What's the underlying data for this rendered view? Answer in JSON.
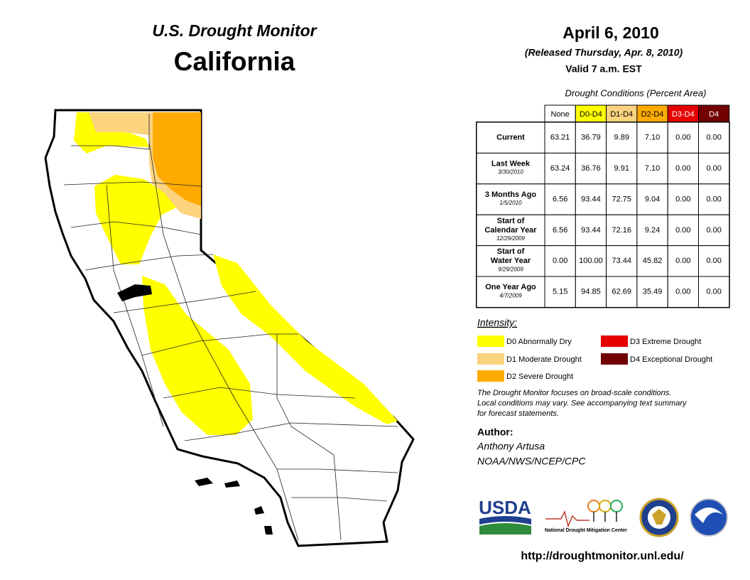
{
  "header": {
    "title": "U.S. Drought Monitor",
    "region": "California",
    "date": "April 6, 2010",
    "released": "(Released Thursday, Apr. 8, 2010)",
    "valid": "Valid 7 a.m. EST"
  },
  "table": {
    "caption": "Drought Conditions (Percent Area)",
    "columns": [
      {
        "label": "None",
        "color": "#ffffff",
        "text_color": "#000000"
      },
      {
        "label": "D0-D4",
        "color": "#ffff00",
        "text_color": "#000000"
      },
      {
        "label": "D1-D4",
        "color": "#fcd37f",
        "text_color": "#000000"
      },
      {
        "label": "D2-D4",
        "color": "#ffaa00",
        "text_color": "#000000"
      },
      {
        "label": "D3-D4",
        "color": "#e60000",
        "text_color": "#ffffff"
      },
      {
        "label": "D4",
        "color": "#730000",
        "text_color": "#ffffff"
      }
    ],
    "rows": [
      {
        "label": [
          "Current"
        ],
        "values": [
          "63.21",
          "36.79",
          "9.89",
          "7.10",
          "0.00",
          "0.00"
        ]
      },
      {
        "label": [
          "Last Week"
        ],
        "date": "3/30/2010",
        "values": [
          "63.24",
          "36.76",
          "9.91",
          "7.10",
          "0.00",
          "0.00"
        ]
      },
      {
        "label": [
          "3 Months Ago"
        ],
        "date": "1/5/2010",
        "values": [
          "6.56",
          "93.44",
          "72.75",
          "9.04",
          "0.00",
          "0.00"
        ]
      },
      {
        "label": [
          "Start of",
          "Calendar Year"
        ],
        "date": "12/29/2009",
        "values": [
          "6.56",
          "93.44",
          "72.16",
          "9.24",
          "0.00",
          "0.00"
        ]
      },
      {
        "label": [
          "Start of",
          "Water Year"
        ],
        "date": "9/29/2009",
        "values": [
          "0.00",
          "100.00",
          "73.44",
          "45.82",
          "0.00",
          "0.00"
        ]
      },
      {
        "label": [
          "One Year Ago"
        ],
        "date": "4/7/2009",
        "values": [
          "5.15",
          "94.85",
          "62.69",
          "35.49",
          "0.00",
          "0.00"
        ]
      }
    ]
  },
  "legend": {
    "title": "Intensity:",
    "items": [
      {
        "label": "D0 Abnormally Dry",
        "color": "#ffff00"
      },
      {
        "label": "D1 Moderate Drought",
        "color": "#fcd37f"
      },
      {
        "label": "D2 Severe Drought",
        "color": "#ffaa00"
      },
      {
        "label": "D3 Extreme Drought",
        "color": "#e60000"
      },
      {
        "label": "D4 Exceptional Drought",
        "color": "#730000"
      }
    ]
  },
  "note": [
    "The Drought Monitor focuses on broad-scale conditions.",
    "Local conditions may vary. See accompanying text summary",
    "for forecast statements."
  ],
  "author": {
    "heading": "Author:",
    "name": "Anthony Artusa",
    "organization": "NOAA/NWS/NCEP/CPC"
  },
  "logos": {
    "usda": "USDA",
    "ndmc": "National Drought Mitigation Center"
  },
  "url": "http://droughtmonitor.unl.edu/"
}
